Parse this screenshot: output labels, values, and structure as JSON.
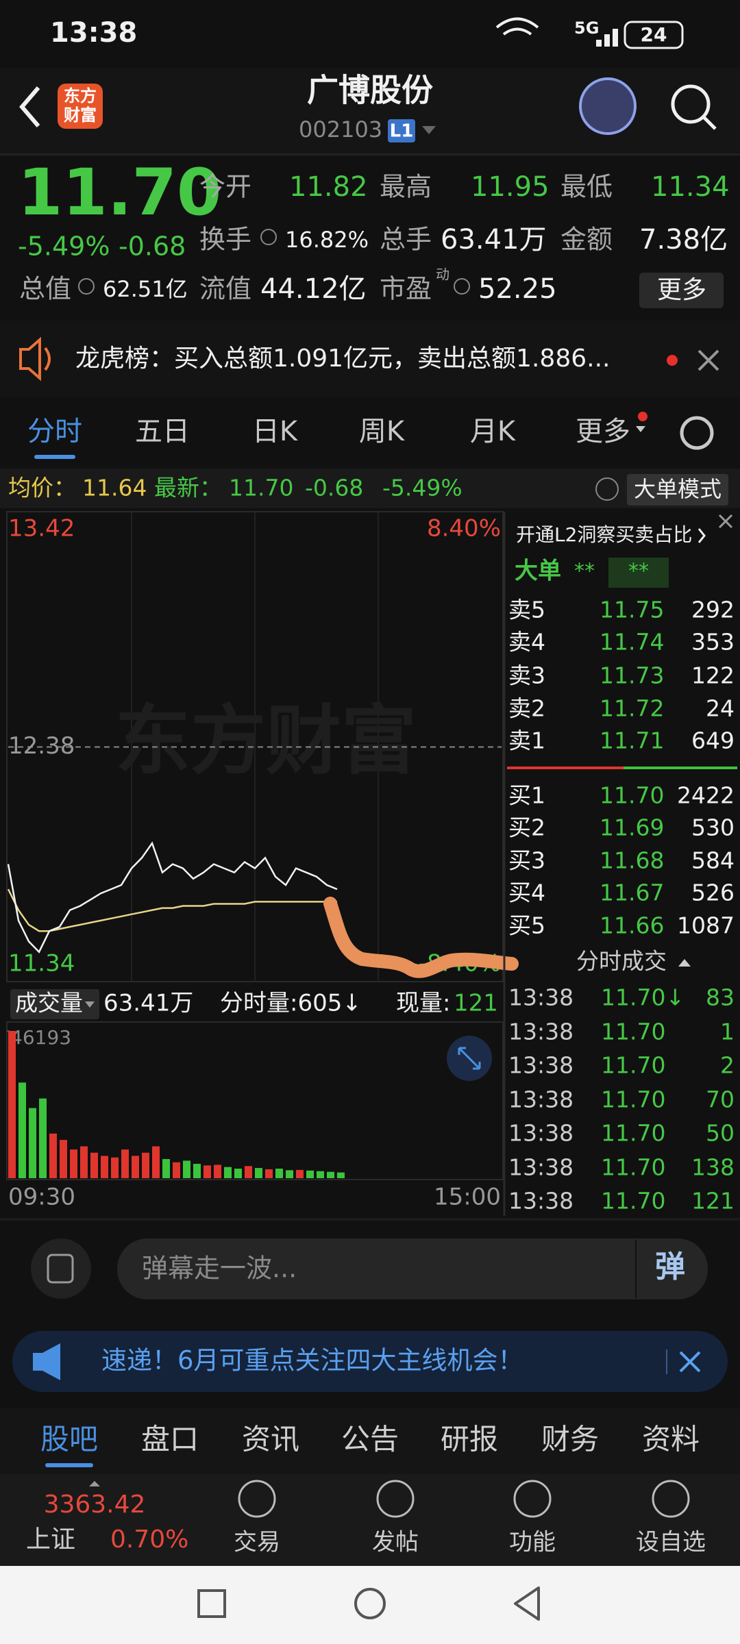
{
  "status_bar": {
    "time": "13:38",
    "network": "5G",
    "battery": "24"
  },
  "header": {
    "logo_lines": [
      "东方",
      "财富"
    ],
    "title": "广博股份",
    "code": "002103",
    "badge": "L1"
  },
  "quote": {
    "price": "11.70",
    "change_pct": "-5.49%",
    "change": "-0.68",
    "fields": [
      {
        "label": "今开",
        "value": "11.82"
      },
      {
        "label": "最高",
        "value": "11.95"
      },
      {
        "label": "最低",
        "value": "11.34"
      },
      {
        "label": "换手",
        "value": "16.82%"
      },
      {
        "label": "总手",
        "value": "63.41万"
      },
      {
        "label": "金额",
        "value": "7.38亿"
      },
      {
        "label": "总值",
        "value": "62.51亿"
      },
      {
        "label": "流值",
        "value": "44.12亿"
      },
      {
        "label": "市盈",
        "value": "52.25"
      }
    ],
    "superscript": "动",
    "more": "更多"
  },
  "notice": "龙虎榜：买入总额1.091亿元，卖出总额1.886...",
  "tabs": [
    "分时",
    "五日",
    "日K",
    "周K",
    "月K",
    "更多"
  ],
  "info_line": {
    "avg_label": "均价：",
    "avg": "11.64",
    "latest_label": "最新：",
    "latest": "11.70",
    "change": "-0.68",
    "change_pct": "-5.49%",
    "mode": "大单模式"
  },
  "chart": {
    "ylim": [
      11.34,
      13.42
    ],
    "yticks": [
      13.42,
      12.38,
      11.34
    ],
    "pct_top": "8.40%",
    "pct_bottom": "-8.40%",
    "watermark": "东方财富",
    "price_color": "#f2f2f2",
    "avg_color": "#e8d48a",
    "up_color": "#e0362e",
    "down_color": "#3cc43c",
    "price": [
      11.82,
      11.55,
      11.45,
      11.4,
      11.5,
      11.52,
      11.6,
      11.62,
      11.65,
      11.68,
      11.7,
      11.72,
      11.8,
      11.85,
      11.92,
      11.78,
      11.82,
      11.8,
      11.75,
      11.78,
      11.82,
      11.8,
      11.78,
      11.83,
      11.8,
      11.85,
      11.76,
      11.72,
      11.8,
      11.78,
      11.76,
      11.72,
      11.7
    ],
    "avg": [
      11.7,
      11.6,
      11.53,
      11.5,
      11.5,
      11.51,
      11.52,
      11.53,
      11.54,
      11.55,
      11.56,
      11.57,
      11.58,
      11.59,
      11.6,
      11.61,
      11.61,
      11.62,
      11.62,
      11.62,
      11.63,
      11.63,
      11.63,
      11.63,
      11.64,
      11.64,
      11.64,
      11.64,
      11.64,
      11.64,
      11.64,
      11.64,
      11.64
    ],
    "volume_header": {
      "label": "成交量",
      "total": "63.41万",
      "period": "分时量:605↓",
      "now_label": "现量:",
      "now": "121"
    },
    "volume_max": 46193,
    "volume": [
      46193,
      30000,
      22000,
      25000,
      14000,
      12000,
      9000,
      10000,
      8000,
      7000,
      6500,
      9000,
      7000,
      8000,
      10000,
      6000,
      5000,
      5500,
      4500,
      4000,
      4200,
      3500,
      3000,
      3800,
      3200,
      2800,
      3000,
      2500,
      2600,
      2400,
      2200,
      2000,
      1800
    ],
    "x_start": "09:30",
    "x_end": "15:00"
  },
  "order_book": {
    "title": "开通L2洞察买卖占比",
    "big_label": "大单",
    "big_values": [
      "**",
      "**"
    ],
    "asks": [
      {
        "label": "卖5",
        "price": "11.75",
        "volume": "292"
      },
      {
        "label": "卖4",
        "price": "11.74",
        "volume": "353"
      },
      {
        "label": "卖3",
        "price": "11.73",
        "volume": "122"
      },
      {
        "label": "卖2",
        "price": "11.72",
        "volume": "24"
      },
      {
        "label": "卖1",
        "price": "11.71",
        "volume": "649"
      }
    ],
    "bids": [
      {
        "label": "买1",
        "price": "11.70",
        "volume": "2422"
      },
      {
        "label": "买2",
        "price": "11.69",
        "volume": "530"
      },
      {
        "label": "买3",
        "price": "11.68",
        "volume": "584"
      },
      {
        "label": "买4",
        "price": "11.67",
        "volume": "526"
      },
      {
        "label": "买5",
        "price": "11.66",
        "volume": "1087"
      }
    ]
  },
  "trades": {
    "title": "分时成交",
    "rows": [
      [
        "13:38",
        "11.70↓",
        "83"
      ],
      [
        "13:38",
        "11.70",
        "1"
      ],
      [
        "13:38",
        "11.70",
        "2"
      ],
      [
        "13:38",
        "11.70",
        "70"
      ],
      [
        "13:38",
        "11.70",
        "50"
      ],
      [
        "13:38",
        "11.70",
        "138"
      ],
      [
        "13:38",
        "11.70",
        "121"
      ]
    ]
  },
  "comment": {
    "placeholder": "弹幕走一波...",
    "button": "弹"
  },
  "promo": "速递！6月可重点关注四大主线机会！",
  "bottom_tabs": [
    "股吧",
    "盘口",
    "资讯",
    "公告",
    "研报",
    "财务",
    "资料"
  ],
  "bottom_nav": {
    "index_value": "3363.42",
    "index_name": "上证",
    "index_pct": "0.70%",
    "items": [
      "交易",
      "发帖",
      "功能",
      "设自选"
    ]
  }
}
